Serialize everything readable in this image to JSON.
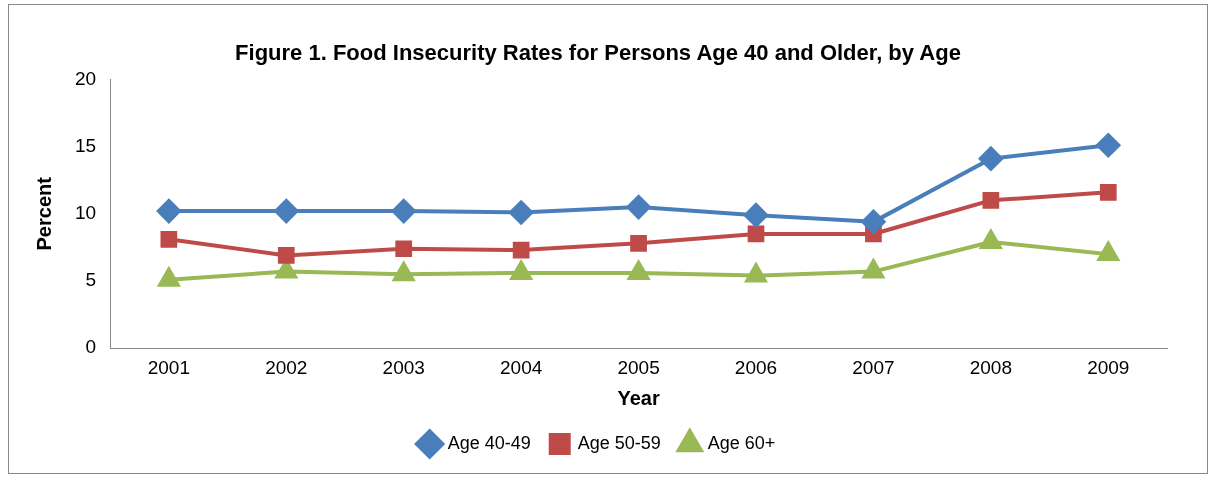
{
  "chart_data": {
    "type": "line",
    "title": "Figure 1. Food Insecurity Rates for Persons Age 40 and Older, by Age",
    "xlabel": "Year",
    "ylabel": "Percent",
    "categories": [
      "2001",
      "2002",
      "2003",
      "2004",
      "2005",
      "2006",
      "2007",
      "2008",
      "2009"
    ],
    "series": [
      {
        "name": "Age 40-49",
        "color": "#4a7ebb",
        "marker": "diamond",
        "values": [
          10.2,
          10.2,
          10.2,
          10.1,
          10.5,
          9.9,
          9.4,
          14.1,
          15.1
        ]
      },
      {
        "name": "Age 50-59",
        "color": "#be4b48",
        "marker": "square",
        "values": [
          8.1,
          6.9,
          7.4,
          7.3,
          7.8,
          8.5,
          8.5,
          11.0,
          11.6
        ]
      },
      {
        "name": "Age 60+",
        "color": "#98b954",
        "marker": "triangle",
        "values": [
          5.1,
          5.7,
          5.5,
          5.6,
          5.6,
          5.4,
          5.7,
          7.9,
          7.0
        ]
      }
    ],
    "ylim": [
      0,
      20
    ],
    "yticks": [
      0,
      5,
      10,
      15,
      20
    ],
    "grid": false,
    "legend": "bottom",
    "line_style": "solid"
  }
}
